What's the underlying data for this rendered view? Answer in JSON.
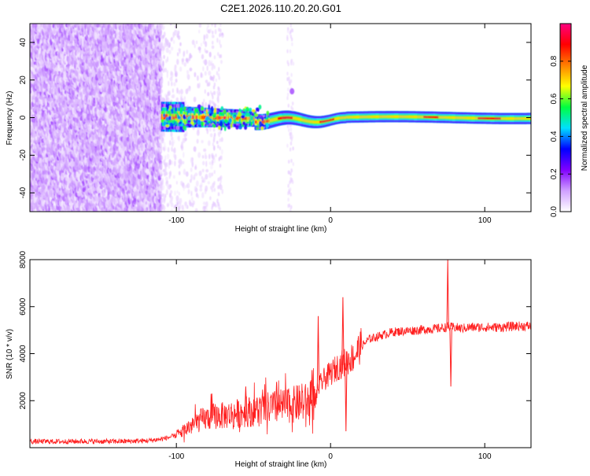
{
  "title": "C2E1.2026.110.20.20.G01",
  "chart_data": [
    {
      "type": "heatmap",
      "title": "C2E1.2026.110.20.20.G01",
      "xlabel": "Height of straight line (km)",
      "ylabel": "Frequency (Hz)",
      "xlim": [
        -195,
        130
      ],
      "ylim": [
        -50,
        50
      ],
      "xticks": [
        -100,
        0,
        100
      ],
      "yticks": [
        -40,
        -20,
        0,
        20,
        40
      ],
      "grid": false,
      "colorbar": {
        "label": "Normalized spectral amplitude",
        "range": [
          0,
          1
        ],
        "ticks": [
          "0.0",
          "0.2",
          "0.4",
          "0.6",
          "0.8"
        ],
        "colors": [
          "#ffffff",
          "#d0a0ff",
          "#8000ff",
          "#0000ff",
          "#00e0ff",
          "#00ff40",
          "#ffff00",
          "#ff8000",
          "#ff0000",
          "#ff0080"
        ]
      },
      "features": [
        {
          "description": "broadband noise",
          "x_range": [
            -195,
            -110
          ],
          "y_range": [
            -50,
            50
          ],
          "amplitude": 0.15
        },
        {
          "description": "sparse noise",
          "x_range": [
            -110,
            -70
          ],
          "y_range": [
            -50,
            50
          ],
          "amplitude": 0.05
        },
        {
          "description": "signal band",
          "x_range": [
            -110,
            130
          ],
          "center_hz": 0,
          "halfwidth_hz": [
            6,
            3
          ],
          "amplitude": 0.9
        },
        {
          "description": "isolated blob",
          "x": -25,
          "y": 14,
          "amplitude": 0.15
        }
      ]
    },
    {
      "type": "line",
      "xlabel": "Height of straight line (km)",
      "ylabel": "SNR (10 * v/v)",
      "xlim": [
        -195,
        130
      ],
      "ylim": [
        0,
        8000
      ],
      "xticks": [
        -100,
        0,
        100
      ],
      "yticks": [
        2000,
        4000,
        6000,
        8000
      ],
      "grid": false,
      "series": [
        {
          "name": "SNR",
          "color": "#ff2020",
          "x": [
            -195,
            -180,
            -160,
            -140,
            -120,
            -110,
            -100,
            -95,
            -90,
            -85,
            -80,
            -75,
            -70,
            -60,
            -50,
            -40,
            -30,
            -20,
            -10,
            -8,
            -5,
            0,
            5,
            10,
            15,
            20,
            25,
            30,
            40,
            50,
            60,
            70,
            75,
            78,
            80,
            85,
            90,
            100,
            110,
            120,
            130
          ],
          "values": [
            250,
            250,
            260,
            250,
            280,
            350,
            500,
            700,
            900,
            1100,
            1200,
            1300,
            1300,
            1400,
            1500,
            1600,
            1700,
            1800,
            1900,
            2500,
            2800,
            3100,
            3400,
            3600,
            3800,
            4300,
            4600,
            4700,
            4900,
            4950,
            5000,
            5050,
            5100,
            5100,
            5100,
            5050,
            5100,
            5100,
            5100,
            5150,
            5150
          ],
          "spikes": [
            {
              "x": -77,
              "y": 2300
            },
            {
              "x": -55,
              "y": 2600
            },
            {
              "x": -35,
              "y": 2800
            },
            {
              "x": -12,
              "y": 3300
            },
            {
              "x": -8,
              "y": 5600
            },
            {
              "x": 8,
              "y": 6400
            },
            {
              "x": 10,
              "y": 700
            },
            {
              "x": 76,
              "y": 8000
            },
            {
              "x": 78,
              "y": 2600
            }
          ]
        }
      ]
    }
  ]
}
